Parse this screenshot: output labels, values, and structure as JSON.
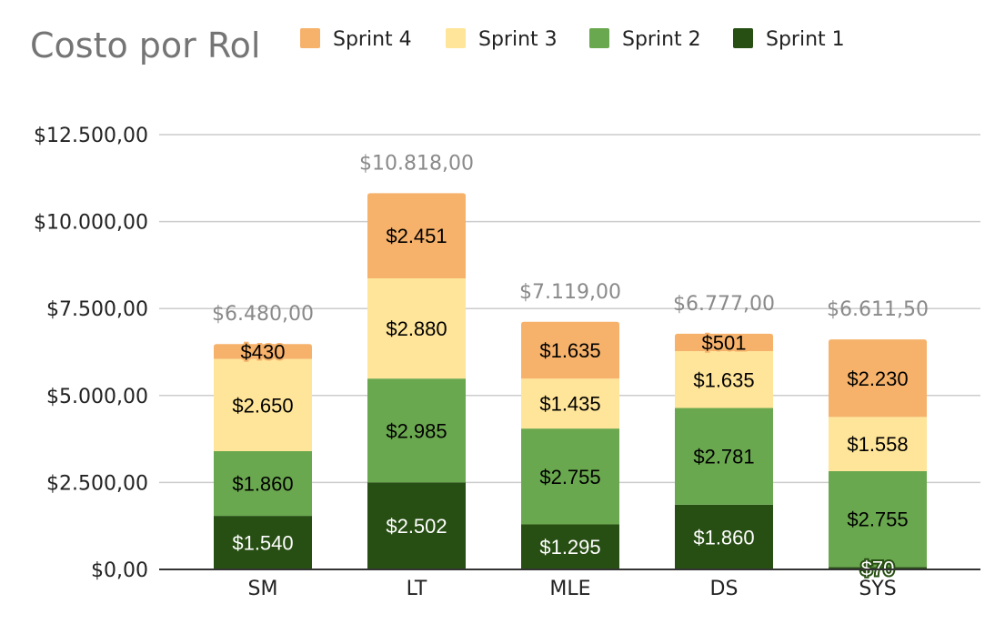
{
  "chart_data": {
    "type": "bar",
    "stacked": true,
    "title": "Costo por Rol",
    "xlabel": "",
    "ylabel": "",
    "ylim": [
      0,
      12500
    ],
    "y_ticks": [
      {
        "value": 0,
        "label": "$0,00"
      },
      {
        "value": 2500,
        "label": "$2.500,00"
      },
      {
        "value": 5000,
        "label": "$5.000,00"
      },
      {
        "value": 7500,
        "label": "$7.500,00"
      },
      {
        "value": 10000,
        "label": "$10.000,00"
      },
      {
        "value": 12500,
        "label": "$12.500,00"
      }
    ],
    "grid": true,
    "legend_position": "top",
    "categories": [
      "SM",
      "LT",
      "MLE",
      "DS",
      "SYS"
    ],
    "series": [
      {
        "name": "Sprint 1",
        "color": "#274e13",
        "label_color": "#ffffff",
        "values": [
          1540,
          2502,
          1295,
          1860,
          70
        ],
        "labels": [
          "$1.540",
          "$2.502",
          "$1.295",
          "$1.860",
          "$70"
        ]
      },
      {
        "name": "Sprint 2",
        "color": "#6aa84f",
        "label_color": "#000000",
        "values": [
          1860,
          2985,
          2755,
          2781,
          2755
        ],
        "labels": [
          "$1.860",
          "$2.985",
          "$2.755",
          "$2.781",
          "$2.755"
        ]
      },
      {
        "name": "Sprint 3",
        "color": "#ffe599",
        "label_color": "#000000",
        "values": [
          2650,
          2880,
          1435,
          1635,
          1558
        ],
        "labels": [
          "$2.650",
          "$2.880",
          "$1.435",
          "$1.635",
          "$1.558"
        ]
      },
      {
        "name": "Sprint 4",
        "color": "#f6b26b",
        "label_color": "#000000",
        "values": [
          430,
          2451,
          1635,
          501,
          2230
        ],
        "labels": [
          "$430",
          "$2.451",
          "$1.635",
          "$501",
          "$2.230"
        ]
      }
    ],
    "legend_order": [
      "Sprint 4",
      "Sprint 3",
      "Sprint 2",
      "Sprint 1"
    ],
    "totals": [
      6480,
      10818,
      7119,
      6777,
      6611.5
    ],
    "total_labels": [
      "$6.480,00",
      "$10.818,00",
      "$7.119,00",
      "$6.777,00",
      "$6.611,50"
    ]
  },
  "colors": {
    "title": "#757575",
    "grid": "#cccccc",
    "axis": "#333333",
    "total_label": "#8a8a8a"
  }
}
